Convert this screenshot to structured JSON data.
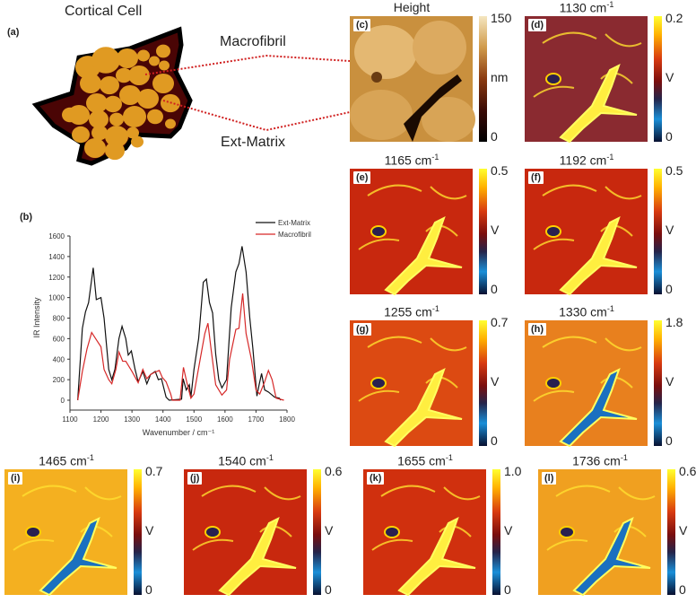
{
  "panel_a": {
    "label": "(a)",
    "title": "Cortical Cell",
    "macrofibril_label": "Macrofibril",
    "matrix_label": "Ext-Matrix"
  },
  "panel_b": {
    "label": "(b)"
  },
  "chart_data": {
    "type": "line",
    "xlabel": "Wavenumber / cm⁻¹",
    "ylabel": "IR Intensity",
    "xlim": [
      1100,
      1800
    ],
    "ylim": [
      -100,
      1600
    ],
    "xticks": [
      "1100",
      "1200",
      "1300",
      "1400",
      "1500",
      "1600",
      "1700",
      "1800"
    ],
    "yticks": [
      "0",
      "200",
      "400",
      "600",
      "800",
      "1000",
      "1200",
      "1400",
      "1600"
    ],
    "legend": "top-right",
    "grid": false,
    "series": [
      {
        "name": "Ext-Matrix",
        "color": "#111111",
        "points": [
          [
            1125,
            0
          ],
          [
            1140,
            700
          ],
          [
            1150,
            860
          ],
          [
            1160,
            950
          ],
          [
            1175,
            1290
          ],
          [
            1185,
            980
          ],
          [
            1200,
            1000
          ],
          [
            1210,
            800
          ],
          [
            1225,
            300
          ],
          [
            1235,
            200
          ],
          [
            1245,
            300
          ],
          [
            1258,
            600
          ],
          [
            1268,
            720
          ],
          [
            1280,
            600
          ],
          [
            1288,
            440
          ],
          [
            1298,
            480
          ],
          [
            1310,
            300
          ],
          [
            1320,
            180
          ],
          [
            1335,
            280
          ],
          [
            1348,
            160
          ],
          [
            1360,
            250
          ],
          [
            1375,
            280
          ],
          [
            1385,
            200
          ],
          [
            1395,
            210
          ],
          [
            1410,
            30
          ],
          [
            1420,
            0
          ],
          [
            1460,
            10
          ],
          [
            1465,
            210
          ],
          [
            1475,
            100
          ],
          [
            1485,
            150
          ],
          [
            1490,
            30
          ],
          [
            1500,
            300
          ],
          [
            1515,
            600
          ],
          [
            1530,
            1150
          ],
          [
            1540,
            1180
          ],
          [
            1550,
            950
          ],
          [
            1560,
            850
          ],
          [
            1570,
            450
          ],
          [
            1580,
            200
          ],
          [
            1590,
            120
          ],
          [
            1605,
            200
          ],
          [
            1620,
            900
          ],
          [
            1635,
            1250
          ],
          [
            1645,
            1330
          ],
          [
            1655,
            1500
          ],
          [
            1668,
            1250
          ],
          [
            1680,
            800
          ],
          [
            1690,
            500
          ],
          [
            1703,
            40
          ],
          [
            1710,
            150
          ],
          [
            1718,
            260
          ],
          [
            1728,
            100
          ],
          [
            1740,
            80
          ],
          [
            1760,
            30
          ],
          [
            1775,
            20
          ],
          [
            1780,
            0
          ]
        ]
      },
      {
        "name": "Macrofibril",
        "color": "#d62828",
        "points": [
          [
            1125,
            0
          ],
          [
            1140,
            280
          ],
          [
            1155,
            500
          ],
          [
            1170,
            660
          ],
          [
            1185,
            590
          ],
          [
            1200,
            520
          ],
          [
            1210,
            300
          ],
          [
            1225,
            200
          ],
          [
            1235,
            160
          ],
          [
            1248,
            300
          ],
          [
            1258,
            470
          ],
          [
            1270,
            380
          ],
          [
            1280,
            380
          ],
          [
            1300,
            280
          ],
          [
            1320,
            170
          ],
          [
            1335,
            300
          ],
          [
            1348,
            210
          ],
          [
            1360,
            250
          ],
          [
            1372,
            270
          ],
          [
            1388,
            290
          ],
          [
            1398,
            220
          ],
          [
            1410,
            180
          ],
          [
            1425,
            60
          ],
          [
            1430,
            0
          ],
          [
            1455,
            0
          ],
          [
            1466,
            320
          ],
          [
            1478,
            160
          ],
          [
            1490,
            20
          ],
          [
            1500,
            60
          ],
          [
            1520,
            400
          ],
          [
            1535,
            650
          ],
          [
            1545,
            750
          ],
          [
            1555,
            500
          ],
          [
            1570,
            150
          ],
          [
            1590,
            50
          ],
          [
            1605,
            100
          ],
          [
            1615,
            400
          ],
          [
            1635,
            690
          ],
          [
            1645,
            700
          ],
          [
            1657,
            1040
          ],
          [
            1668,
            650
          ],
          [
            1685,
            400
          ],
          [
            1700,
            100
          ],
          [
            1712,
            60
          ],
          [
            1728,
            180
          ],
          [
            1740,
            290
          ],
          [
            1752,
            200
          ],
          [
            1765,
            20
          ],
          [
            1790,
            0
          ]
        ]
      }
    ]
  },
  "maps": [
    {
      "tag": "(c)",
      "title": "Height",
      "unit": "nm",
      "max": "150",
      "min": "0",
      "scale": "height"
    },
    {
      "tag": "(d)",
      "title": "1130 cm",
      "unit": "V",
      "max": "0.2",
      "min": "0",
      "scale": "v",
      "base": "#8a2a30"
    },
    {
      "tag": "(e)",
      "title": "1165 cm",
      "unit": "V",
      "max": "0.5",
      "min": "0",
      "scale": "v",
      "base": "#c8280e"
    },
    {
      "tag": "(f)",
      "title": "1192 cm",
      "unit": "V",
      "max": "0.5",
      "min": "0",
      "scale": "v",
      "base": "#c8280e"
    },
    {
      "tag": "(g)",
      "title": "1255 cm",
      "unit": "V",
      "max": "0.7",
      "min": "0",
      "scale": "v",
      "base": "#dc4a12"
    },
    {
      "tag": "(h)",
      "title": "1330 cm",
      "unit": "V",
      "max": "1.8",
      "min": "0",
      "scale": "v",
      "base": "#e8801e"
    },
    {
      "tag": "(i)",
      "title": "1465 cm",
      "unit": "V",
      "max": "0.7",
      "min": "0",
      "scale": "v",
      "base": "#f4b020"
    },
    {
      "tag": "(j)",
      "title": "1540 cm",
      "unit": "V",
      "max": "0.6",
      "min": "0",
      "scale": "v",
      "base": "#c8280e"
    },
    {
      "tag": "(k)",
      "title": "1655 cm",
      "unit": "V",
      "max": "1.0",
      "min": "0",
      "scale": "v",
      "base": "#d0300e"
    },
    {
      "tag": "(l)",
      "title": "1736 cm",
      "unit": "V",
      "max": "0.6",
      "min": "0",
      "scale": "v",
      "base": "#f0a020"
    }
  ],
  "wavenumber_unit_sup": "-1"
}
